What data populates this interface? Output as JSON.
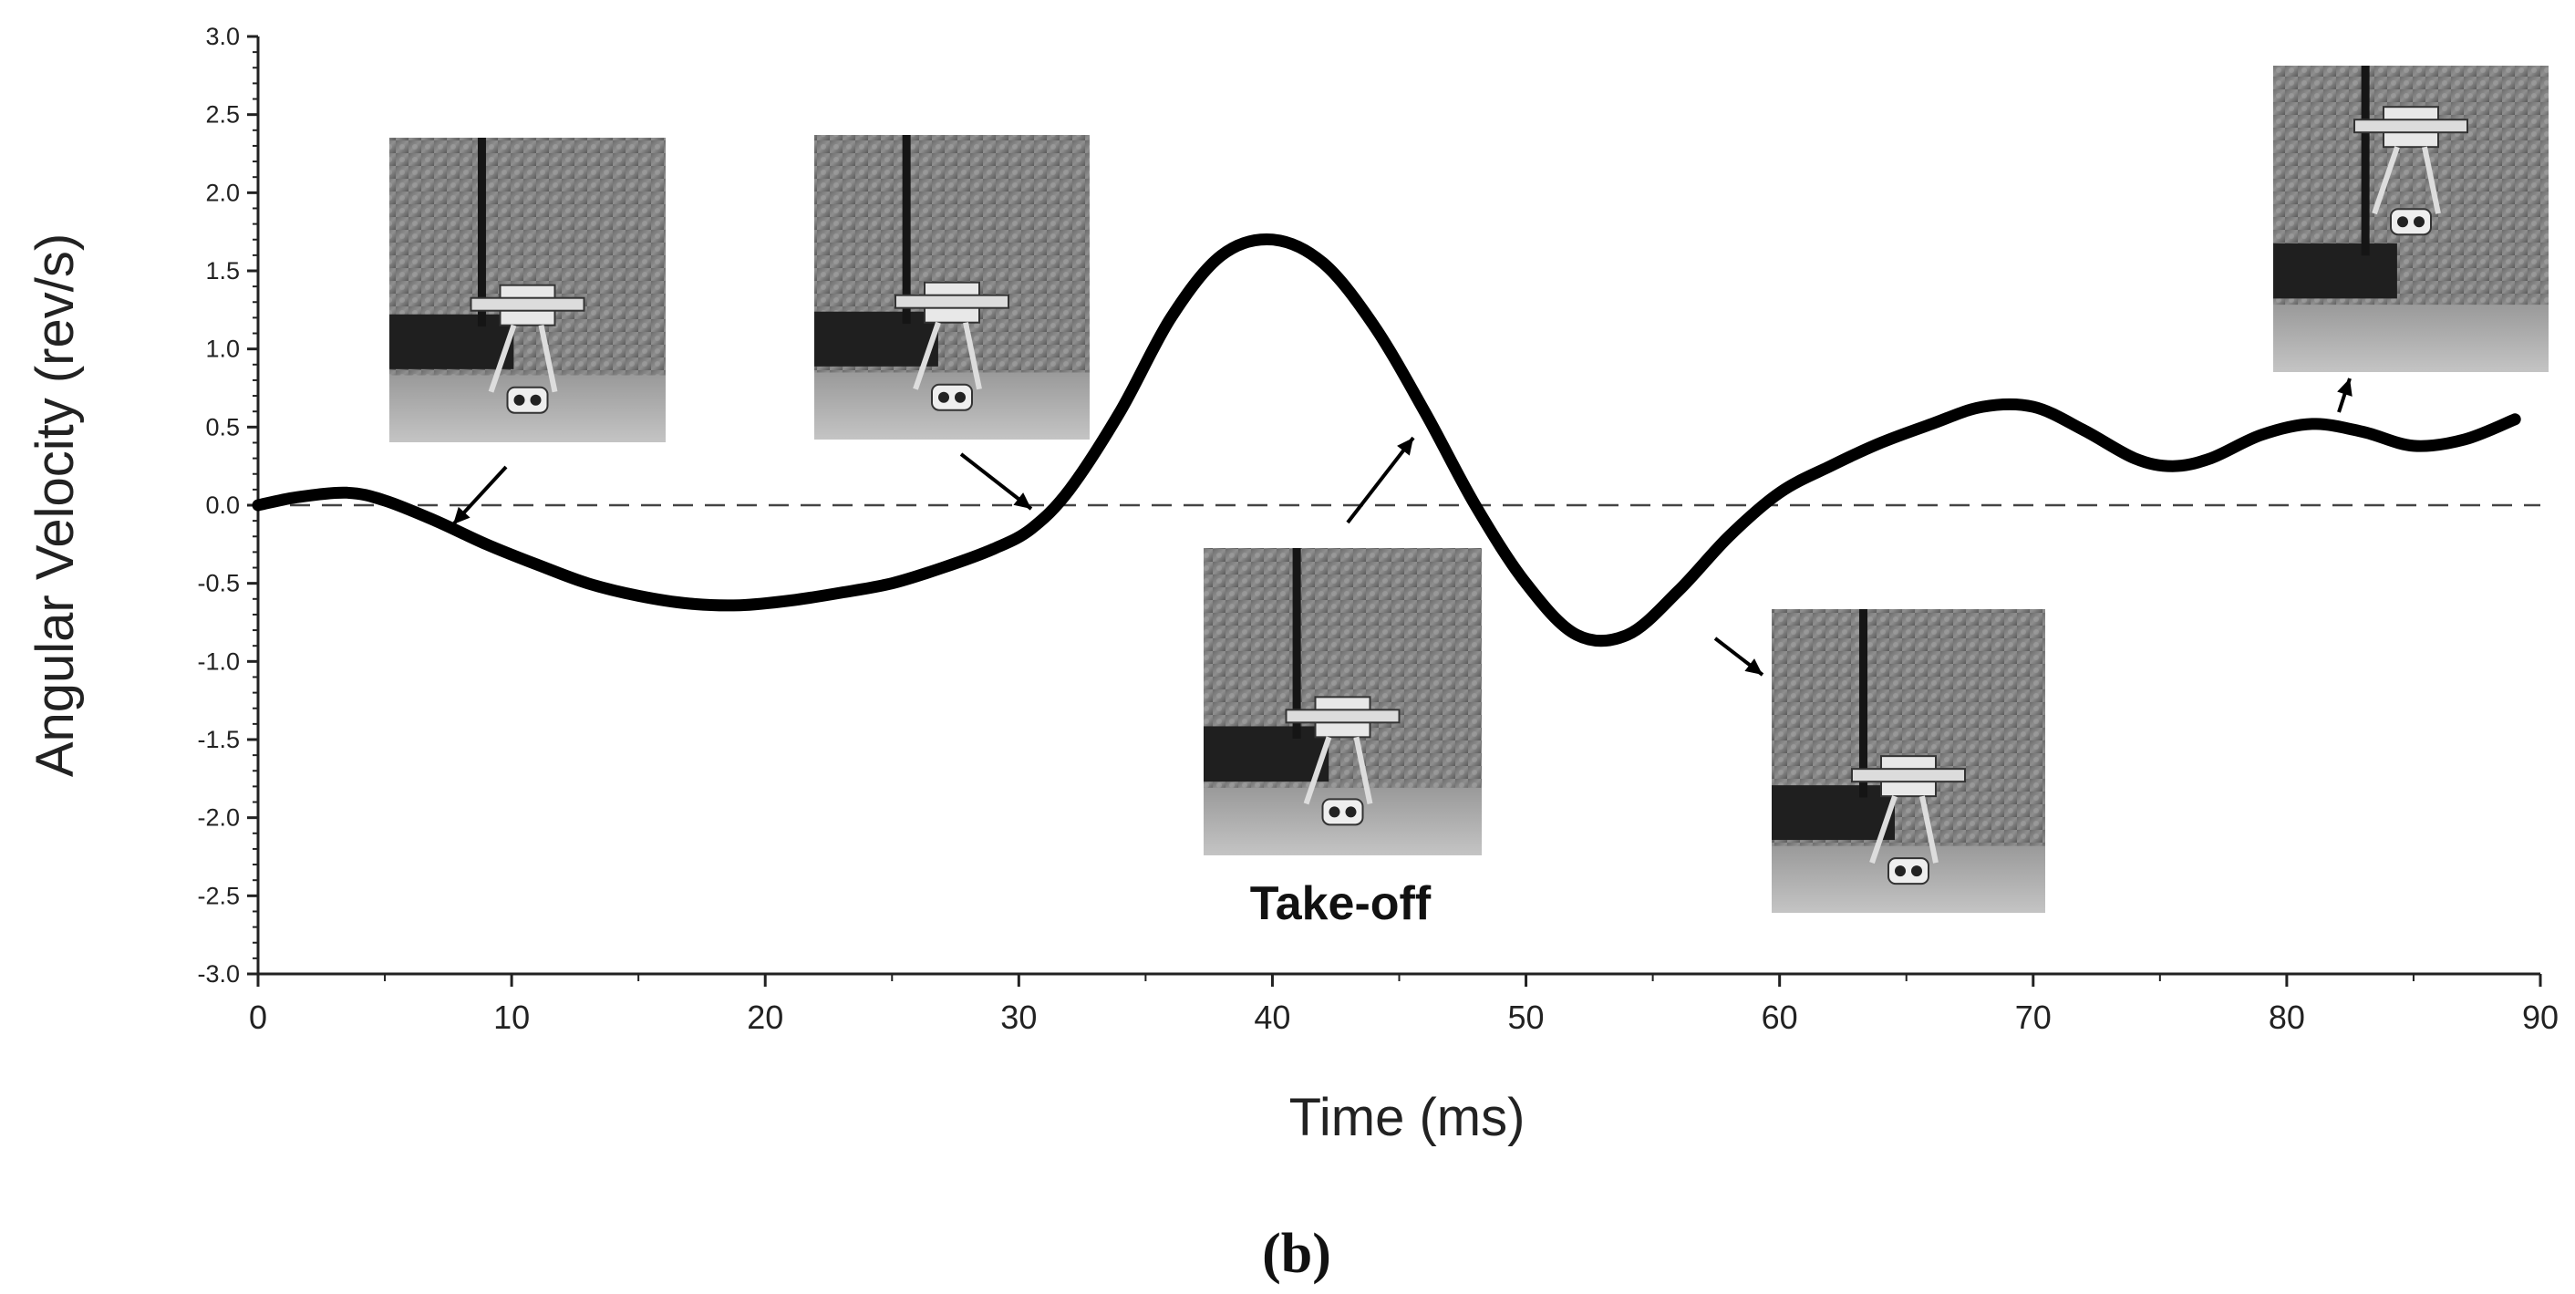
{
  "chart_data": {
    "type": "line",
    "title": "",
    "xlabel": "Time (ms)",
    "ylabel": "Angular Velocity (rev/s)",
    "xlim": [
      0,
      90
    ],
    "ylim": [
      -3.0,
      3.0
    ],
    "x_ticks": [
      0,
      10,
      20,
      30,
      40,
      50,
      60,
      70,
      80,
      90
    ],
    "x_tick_labels": [
      "0",
      "10",
      "20",
      "30",
      "40",
      "50",
      "60",
      "70",
      "80",
      "90"
    ],
    "y_ticks": [
      3.0,
      2.5,
      2.0,
      1.5,
      1.0,
      0.5,
      0.0,
      -0.5,
      -1.0,
      -1.5,
      -2.0,
      -2.5,
      -3.0
    ],
    "y_tick_labels": [
      "3.0",
      "2.5",
      "2.0",
      "1.5",
      "1.0",
      "0.5",
      "0.0",
      "-0.5",
      "-1.0",
      "-1.5",
      "-2.0",
      "-2.5",
      "-3.0"
    ],
    "zero_line": "dashed",
    "grid": false,
    "series": [
      {
        "color": "#000000",
        "x": [
          0,
          1.5,
          3.5,
          5,
          7,
          9,
          11,
          13,
          15,
          17,
          19,
          21,
          23,
          25,
          27,
          29,
          30.5,
          32,
          34,
          36,
          38,
          40,
          42,
          44,
          46,
          48,
          50,
          52,
          54,
          56,
          58,
          60,
          62,
          64,
          66,
          68,
          70,
          72,
          74,
          75.5,
          77,
          79,
          81,
          83,
          85,
          87,
          89
        ],
        "y": [
          0.0,
          0.05,
          0.08,
          0.03,
          -0.1,
          -0.25,
          -0.38,
          -0.5,
          -0.58,
          -0.63,
          -0.64,
          -0.61,
          -0.56,
          -0.5,
          -0.4,
          -0.28,
          -0.15,
          0.1,
          0.6,
          1.2,
          1.6,
          1.7,
          1.55,
          1.15,
          0.6,
          0.0,
          -0.5,
          -0.83,
          -0.83,
          -0.55,
          -0.2,
          0.08,
          0.25,
          0.4,
          0.52,
          0.63,
          0.63,
          0.48,
          0.3,
          0.25,
          0.3,
          0.45,
          0.52,
          0.47,
          0.38,
          0.42,
          0.55
        ]
      }
    ],
    "annotations": [
      {
        "text": "Take-off"
      }
    ],
    "panel_label": "(b)"
  },
  "photos": [
    {
      "icon": "robot-crouched-photo"
    },
    {
      "icon": "robot-extending-photo"
    },
    {
      "icon": "robot-takeoff-photo"
    },
    {
      "icon": "robot-airborne-photo"
    },
    {
      "icon": "robot-high-jump-photo"
    }
  ]
}
